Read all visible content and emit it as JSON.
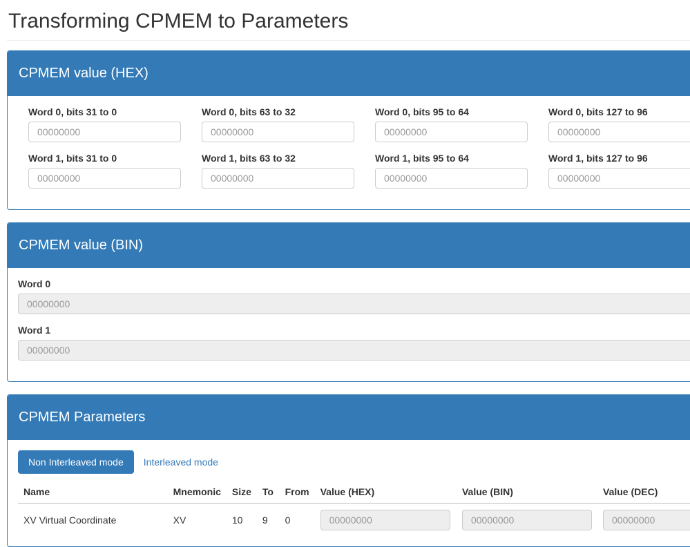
{
  "page": {
    "title": "Transforming CPMEM to Parameters"
  },
  "colors": {
    "primary": "#337ab7",
    "input_border": "#ccc",
    "disabled_bg": "#eee",
    "placeholder": "#999",
    "table_divider": "#ddd"
  },
  "hex_panel": {
    "title": "CPMEM value (HEX)",
    "fields": [
      {
        "label": "Word 0, bits 31 to 0",
        "placeholder": "00000000"
      },
      {
        "label": "Word 0, bits 63 to 32",
        "placeholder": "00000000"
      },
      {
        "label": "Word 0, bits 95 to 64",
        "placeholder": "00000000"
      },
      {
        "label": "Word 0, bits 127 to 96",
        "placeholder": "00000000"
      },
      {
        "label": "Word 1, bits 31 to 0",
        "placeholder": "00000000"
      },
      {
        "label": "Word 1, bits 63 to 32",
        "placeholder": "00000000"
      },
      {
        "label": "Word 1, bits 95 to 64",
        "placeholder": "00000000"
      },
      {
        "label": "Word 1, bits 127 to 96",
        "placeholder": "00000000"
      }
    ]
  },
  "bin_panel": {
    "title": "CPMEM value (BIN)",
    "fields": [
      {
        "label": "Word 0",
        "placeholder": "00000000"
      },
      {
        "label": "Word 1",
        "placeholder": "00000000"
      }
    ]
  },
  "params_panel": {
    "title": "CPMEM Parameters",
    "tabs": [
      {
        "label": "Non Interleaved mode",
        "active": true
      },
      {
        "label": "Interleaved mode",
        "active": false
      }
    ],
    "table": {
      "headers": [
        "Name",
        "Mnemonic",
        "Size",
        "To",
        "From",
        "Value (HEX)",
        "Value (BIN)",
        "Value (DEC)"
      ],
      "rows": [
        {
          "name": "XV Virtual Coordinate",
          "mnemonic": "XV",
          "size": "10",
          "to": "9",
          "from": "0",
          "value_hex_placeholder": "00000000",
          "value_bin_placeholder": "00000000",
          "value_dec_placeholder": "00000000"
        }
      ]
    }
  }
}
